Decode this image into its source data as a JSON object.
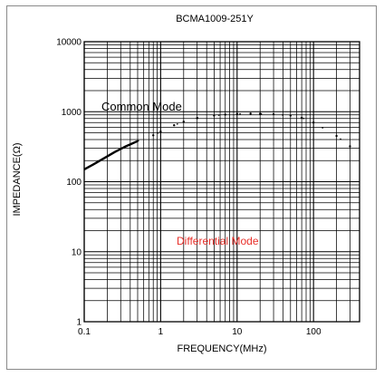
{
  "chart_data": {
    "type": "line",
    "title": "BCMA1009-251Y",
    "xlabel": "FREQUENCY(MHz)",
    "ylabel": "IMPEDANCE(Ω)",
    "xscale": "log",
    "yscale": "log",
    "xlim": [
      0.1,
      400
    ],
    "ylim": [
      1,
      10000
    ],
    "x_tick_labels": [
      "0.1",
      "1",
      "10",
      "100"
    ],
    "y_tick_labels": [
      "1",
      "10",
      "100",
      "1000",
      "10000"
    ],
    "grid": true,
    "annotations": [
      "Common Mode",
      "Differential Mode"
    ],
    "colors": {
      "common": "#000000",
      "differential": "#e8302a",
      "grid": "#000000"
    },
    "series": [
      {
        "name": "Common Mode",
        "x": [
          0.1,
          0.13,
          0.18,
          0.25,
          0.35,
          0.5,
          0.8,
          1,
          1.5,
          2,
          3,
          5,
          7,
          10,
          15,
          20,
          30,
          50,
          70,
          100,
          200,
          300
        ],
        "y": [
          150,
          175,
          215,
          265,
          320,
          380,
          460,
          520,
          640,
          720,
          810,
          880,
          910,
          930,
          940,
          935,
          920,
          880,
          820,
          700,
          450,
          320
        ]
      }
    ]
  }
}
